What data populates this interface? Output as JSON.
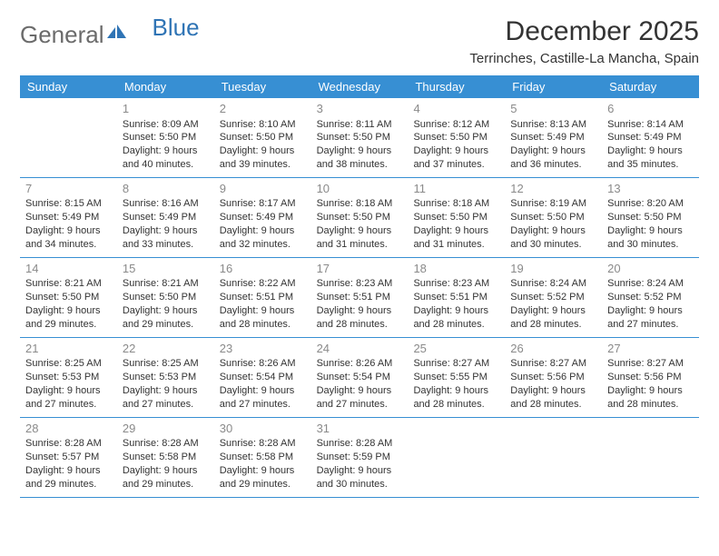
{
  "brand": {
    "word1": "General",
    "word2": "Blue",
    "text_color": "#6b6b6b",
    "accent_color": "#2f74b5"
  },
  "title": "December 2025",
  "location": "Terrinches, Castille-La Mancha, Spain",
  "colors": {
    "header_bg": "#378fd3",
    "header_text": "#ffffff",
    "rule": "#378fd3",
    "daynum": "#8a8a8a",
    "body_text": "#333333",
    "page_bg": "#ffffff"
  },
  "day_labels": [
    "Sunday",
    "Monday",
    "Tuesday",
    "Wednesday",
    "Thursday",
    "Friday",
    "Saturday"
  ],
  "weeks": [
    [
      null,
      {
        "n": "1",
        "sr": "Sunrise: 8:09 AM",
        "ss": "Sunset: 5:50 PM",
        "dl": "Daylight: 9 hours and 40 minutes."
      },
      {
        "n": "2",
        "sr": "Sunrise: 8:10 AM",
        "ss": "Sunset: 5:50 PM",
        "dl": "Daylight: 9 hours and 39 minutes."
      },
      {
        "n": "3",
        "sr": "Sunrise: 8:11 AM",
        "ss": "Sunset: 5:50 PM",
        "dl": "Daylight: 9 hours and 38 minutes."
      },
      {
        "n": "4",
        "sr": "Sunrise: 8:12 AM",
        "ss": "Sunset: 5:50 PM",
        "dl": "Daylight: 9 hours and 37 minutes."
      },
      {
        "n": "5",
        "sr": "Sunrise: 8:13 AM",
        "ss": "Sunset: 5:49 PM",
        "dl": "Daylight: 9 hours and 36 minutes."
      },
      {
        "n": "6",
        "sr": "Sunrise: 8:14 AM",
        "ss": "Sunset: 5:49 PM",
        "dl": "Daylight: 9 hours and 35 minutes."
      }
    ],
    [
      {
        "n": "7",
        "sr": "Sunrise: 8:15 AM",
        "ss": "Sunset: 5:49 PM",
        "dl": "Daylight: 9 hours and 34 minutes."
      },
      {
        "n": "8",
        "sr": "Sunrise: 8:16 AM",
        "ss": "Sunset: 5:49 PM",
        "dl": "Daylight: 9 hours and 33 minutes."
      },
      {
        "n": "9",
        "sr": "Sunrise: 8:17 AM",
        "ss": "Sunset: 5:49 PM",
        "dl": "Daylight: 9 hours and 32 minutes."
      },
      {
        "n": "10",
        "sr": "Sunrise: 8:18 AM",
        "ss": "Sunset: 5:50 PM",
        "dl": "Daylight: 9 hours and 31 minutes."
      },
      {
        "n": "11",
        "sr": "Sunrise: 8:18 AM",
        "ss": "Sunset: 5:50 PM",
        "dl": "Daylight: 9 hours and 31 minutes."
      },
      {
        "n": "12",
        "sr": "Sunrise: 8:19 AM",
        "ss": "Sunset: 5:50 PM",
        "dl": "Daylight: 9 hours and 30 minutes."
      },
      {
        "n": "13",
        "sr": "Sunrise: 8:20 AM",
        "ss": "Sunset: 5:50 PM",
        "dl": "Daylight: 9 hours and 30 minutes."
      }
    ],
    [
      {
        "n": "14",
        "sr": "Sunrise: 8:21 AM",
        "ss": "Sunset: 5:50 PM",
        "dl": "Daylight: 9 hours and 29 minutes."
      },
      {
        "n": "15",
        "sr": "Sunrise: 8:21 AM",
        "ss": "Sunset: 5:50 PM",
        "dl": "Daylight: 9 hours and 29 minutes."
      },
      {
        "n": "16",
        "sr": "Sunrise: 8:22 AM",
        "ss": "Sunset: 5:51 PM",
        "dl": "Daylight: 9 hours and 28 minutes."
      },
      {
        "n": "17",
        "sr": "Sunrise: 8:23 AM",
        "ss": "Sunset: 5:51 PM",
        "dl": "Daylight: 9 hours and 28 minutes."
      },
      {
        "n": "18",
        "sr": "Sunrise: 8:23 AM",
        "ss": "Sunset: 5:51 PM",
        "dl": "Daylight: 9 hours and 28 minutes."
      },
      {
        "n": "19",
        "sr": "Sunrise: 8:24 AM",
        "ss": "Sunset: 5:52 PM",
        "dl": "Daylight: 9 hours and 28 minutes."
      },
      {
        "n": "20",
        "sr": "Sunrise: 8:24 AM",
        "ss": "Sunset: 5:52 PM",
        "dl": "Daylight: 9 hours and 27 minutes."
      }
    ],
    [
      {
        "n": "21",
        "sr": "Sunrise: 8:25 AM",
        "ss": "Sunset: 5:53 PM",
        "dl": "Daylight: 9 hours and 27 minutes."
      },
      {
        "n": "22",
        "sr": "Sunrise: 8:25 AM",
        "ss": "Sunset: 5:53 PM",
        "dl": "Daylight: 9 hours and 27 minutes."
      },
      {
        "n": "23",
        "sr": "Sunrise: 8:26 AM",
        "ss": "Sunset: 5:54 PM",
        "dl": "Daylight: 9 hours and 27 minutes."
      },
      {
        "n": "24",
        "sr": "Sunrise: 8:26 AM",
        "ss": "Sunset: 5:54 PM",
        "dl": "Daylight: 9 hours and 27 minutes."
      },
      {
        "n": "25",
        "sr": "Sunrise: 8:27 AM",
        "ss": "Sunset: 5:55 PM",
        "dl": "Daylight: 9 hours and 28 minutes."
      },
      {
        "n": "26",
        "sr": "Sunrise: 8:27 AM",
        "ss": "Sunset: 5:56 PM",
        "dl": "Daylight: 9 hours and 28 minutes."
      },
      {
        "n": "27",
        "sr": "Sunrise: 8:27 AM",
        "ss": "Sunset: 5:56 PM",
        "dl": "Daylight: 9 hours and 28 minutes."
      }
    ],
    [
      {
        "n": "28",
        "sr": "Sunrise: 8:28 AM",
        "ss": "Sunset: 5:57 PM",
        "dl": "Daylight: 9 hours and 29 minutes."
      },
      {
        "n": "29",
        "sr": "Sunrise: 8:28 AM",
        "ss": "Sunset: 5:58 PM",
        "dl": "Daylight: 9 hours and 29 minutes."
      },
      {
        "n": "30",
        "sr": "Sunrise: 8:28 AM",
        "ss": "Sunset: 5:58 PM",
        "dl": "Daylight: 9 hours and 29 minutes."
      },
      {
        "n": "31",
        "sr": "Sunrise: 8:28 AM",
        "ss": "Sunset: 5:59 PM",
        "dl": "Daylight: 9 hours and 30 minutes."
      },
      null,
      null,
      null
    ]
  ]
}
